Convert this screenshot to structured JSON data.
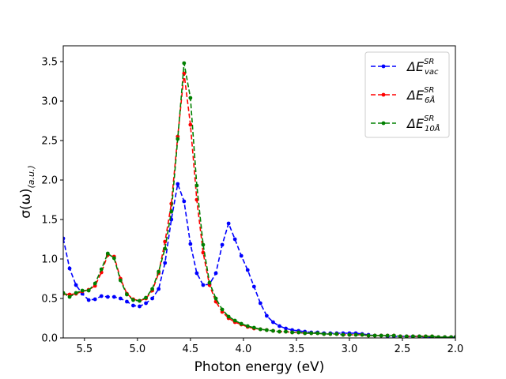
{
  "chart_data": {
    "type": "line",
    "title": "",
    "xlabel": "Photon energy (eV)",
    "ylabel": {
      "main": "σ(ω)",
      "subscript": "(a.u.)"
    },
    "xlim": [
      5.7,
      2.0
    ],
    "ylim": [
      0.0,
      3.7
    ],
    "xticks": [
      5.5,
      5.0,
      4.5,
      4.0,
      3.5,
      3.0,
      2.5,
      2.0
    ],
    "xtick_labels": [
      "5.5",
      "5.0",
      "4.5",
      "4.0",
      "3.5",
      "3.0",
      "2.5",
      "2.0"
    ],
    "yticks": [
      0.0,
      0.5,
      1.0,
      1.5,
      2.0,
      2.5,
      3.0,
      3.5
    ],
    "ytick_labels": [
      "0.0",
      "0.5",
      "1.0",
      "1.5",
      "2.0",
      "2.5",
      "3.0",
      "3.5"
    ],
    "legend_position": "top-right",
    "series": [
      {
        "name": "ΔE_vac^SR",
        "legend": {
          "base": "ΔE",
          "sub": "vac",
          "sup": "SR"
        },
        "color": "#0000ff",
        "linestyle": "dashed",
        "marker": "circle",
        "x": [
          5.7,
          5.64,
          5.58,
          5.52,
          5.46,
          5.4,
          5.34,
          5.28,
          5.22,
          5.16,
          5.1,
          5.04,
          4.98,
          4.92,
          4.86,
          4.8,
          4.74,
          4.68,
          4.62,
          4.56,
          4.5,
          4.44,
          4.38,
          4.32,
          4.26,
          4.2,
          4.14,
          4.08,
          4.02,
          3.96,
          3.9,
          3.84,
          3.78,
          3.72,
          3.66,
          3.6,
          3.54,
          3.48,
          3.42,
          3.36,
          3.3,
          3.24,
          3.18,
          3.12,
          3.06,
          3.0,
          2.94,
          2.88,
          2.82,
          2.76,
          2.7,
          2.64,
          2.58,
          2.52,
          2.46,
          2.4,
          2.34,
          2.28,
          2.22,
          2.16,
          2.1,
          2.04,
          2.0
        ],
        "values": [
          1.26,
          0.88,
          0.67,
          0.56,
          0.48,
          0.49,
          0.53,
          0.52,
          0.52,
          0.5,
          0.46,
          0.41,
          0.4,
          0.44,
          0.5,
          0.62,
          0.95,
          1.5,
          1.95,
          1.73,
          1.19,
          0.82,
          0.67,
          0.68,
          0.82,
          1.18,
          1.45,
          1.25,
          1.04,
          0.86,
          0.65,
          0.44,
          0.28,
          0.2,
          0.15,
          0.12,
          0.1,
          0.09,
          0.08,
          0.07,
          0.07,
          0.06,
          0.06,
          0.06,
          0.06,
          0.06,
          0.06,
          0.05,
          0.04,
          0.03,
          0.03,
          0.02,
          0.02,
          0.02,
          0.02,
          0.02,
          0.02,
          0.01,
          0.01,
          0.01,
          0.01,
          0.01,
          0.01
        ]
      },
      {
        "name": "ΔE_6Å^SR",
        "legend": {
          "base": "ΔE",
          "sub": "6Å",
          "sup": "SR"
        },
        "color": "#ff0000",
        "linestyle": "dashed",
        "marker": "circle",
        "x": [
          5.7,
          5.64,
          5.58,
          5.52,
          5.46,
          5.4,
          5.34,
          5.28,
          5.22,
          5.16,
          5.1,
          5.04,
          4.98,
          4.92,
          4.86,
          4.8,
          4.74,
          4.68,
          4.62,
          4.56,
          4.5,
          4.44,
          4.38,
          4.32,
          4.26,
          4.2,
          4.14,
          4.08,
          4.02,
          3.96,
          3.9,
          3.84,
          3.78,
          3.72,
          3.66,
          3.6,
          3.54,
          3.48,
          3.42,
          3.36,
          3.3,
          3.24,
          3.18,
          3.12,
          3.06,
          3.0,
          2.94,
          2.88,
          2.82,
          2.76,
          2.7,
          2.64,
          2.58,
          2.52,
          2.46,
          2.4,
          2.34,
          2.28,
          2.22,
          2.16,
          2.1,
          2.04,
          2.0
        ],
        "values": [
          0.56,
          0.55,
          0.56,
          0.59,
          0.61,
          0.66,
          0.83,
          1.05,
          1.03,
          0.75,
          0.56,
          0.49,
          0.47,
          0.5,
          0.6,
          0.82,
          1.22,
          1.7,
          2.55,
          3.35,
          2.7,
          1.75,
          1.08,
          0.67,
          0.46,
          0.33,
          0.25,
          0.2,
          0.17,
          0.14,
          0.12,
          0.11,
          0.1,
          0.09,
          0.08,
          0.08,
          0.07,
          0.07,
          0.06,
          0.06,
          0.06,
          0.05,
          0.05,
          0.05,
          0.04,
          0.04,
          0.04,
          0.04,
          0.03,
          0.03,
          0.03,
          0.03,
          0.03,
          0.02,
          0.02,
          0.02,
          0.02,
          0.02,
          0.02,
          0.01,
          0.01,
          0.01,
          0.01
        ]
      },
      {
        "name": "ΔE_10Å^SR",
        "legend": {
          "base": "ΔE",
          "sub": "10Å",
          "sup": "SR"
        },
        "color": "#008000",
        "linestyle": "dashed",
        "marker": "circle",
        "x": [
          5.7,
          5.64,
          5.58,
          5.52,
          5.46,
          5.4,
          5.34,
          5.28,
          5.22,
          5.16,
          5.1,
          5.04,
          4.98,
          4.92,
          4.86,
          4.8,
          4.74,
          4.68,
          4.62,
          4.56,
          4.5,
          4.44,
          4.38,
          4.32,
          4.26,
          4.2,
          4.14,
          4.08,
          4.02,
          3.96,
          3.9,
          3.84,
          3.78,
          3.72,
          3.66,
          3.6,
          3.54,
          3.48,
          3.42,
          3.36,
          3.3,
          3.24,
          3.18,
          3.12,
          3.06,
          3.0,
          2.94,
          2.88,
          2.82,
          2.76,
          2.7,
          2.64,
          2.58,
          2.52,
          2.46,
          2.4,
          2.34,
          2.28,
          2.22,
          2.16,
          2.1,
          2.04,
          2.0
        ],
        "values": [
          0.57,
          0.52,
          0.57,
          0.6,
          0.6,
          0.69,
          0.87,
          1.07,
          1.01,
          0.73,
          0.55,
          0.48,
          0.47,
          0.51,
          0.62,
          0.84,
          1.13,
          1.6,
          2.52,
          3.48,
          3.04,
          1.93,
          1.18,
          0.7,
          0.5,
          0.36,
          0.27,
          0.22,
          0.18,
          0.15,
          0.13,
          0.11,
          0.1,
          0.09,
          0.08,
          0.08,
          0.07,
          0.07,
          0.06,
          0.06,
          0.06,
          0.05,
          0.05,
          0.05,
          0.04,
          0.04,
          0.04,
          0.04,
          0.03,
          0.03,
          0.03,
          0.03,
          0.03,
          0.02,
          0.02,
          0.02,
          0.02,
          0.02,
          0.02,
          0.01,
          0.01,
          0.01,
          0.01
        ]
      }
    ]
  }
}
